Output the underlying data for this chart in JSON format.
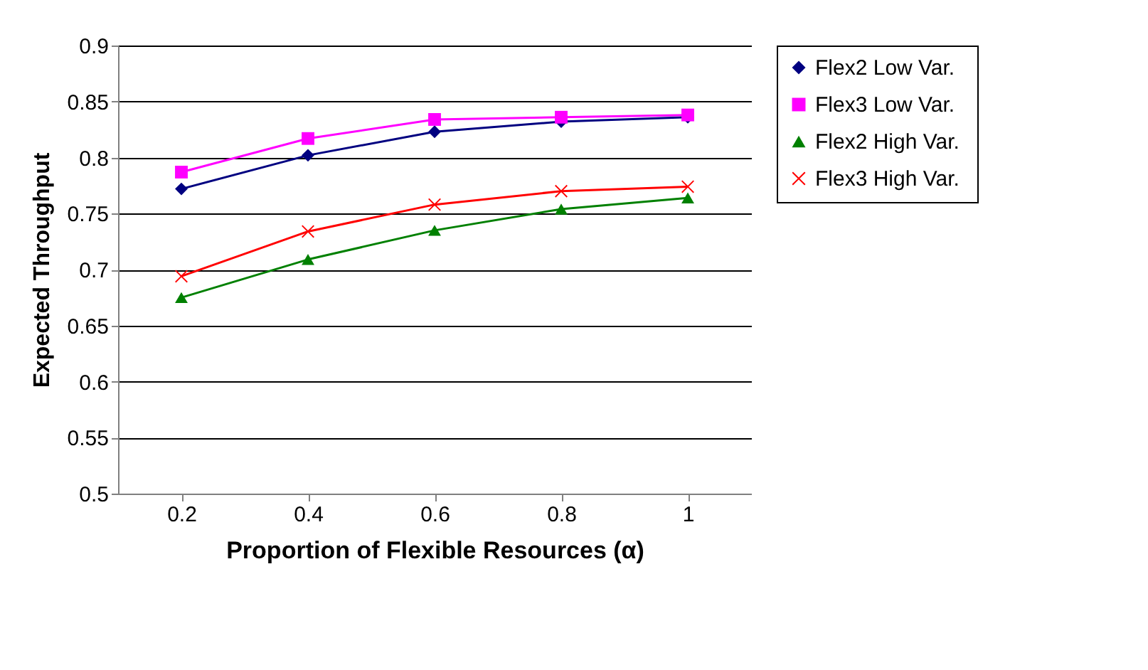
{
  "chart_data": {
    "type": "line",
    "xlabel": "Proportion of Flexible Resources (α)",
    "ylabel": "Expected Throughput",
    "categories": [
      "0.2",
      "0.4",
      "0.6",
      "0.8",
      "1"
    ],
    "series": [
      {
        "name": "Flex2 Low Var.",
        "color": "#000080",
        "marker": "diamond",
        "values": [
          0.772,
          0.802,
          0.823,
          0.832,
          0.836
        ]
      },
      {
        "name": "Flex3 Low Var.",
        "color": "#ff00ff",
        "marker": "square",
        "values": [
          0.787,
          0.817,
          0.834,
          0.836,
          0.838
        ]
      },
      {
        "name": "Flex2 High Var.",
        "color": "#008000",
        "marker": "triangle",
        "values": [
          0.675,
          0.709,
          0.735,
          0.754,
          0.764
        ]
      },
      {
        "name": "Flex3  High Var.",
        "color": "#ff0000",
        "marker": "cross",
        "values": [
          0.694,
          0.734,
          0.758,
          0.77,
          0.774
        ]
      }
    ],
    "ylim": [
      0.5,
      0.9
    ],
    "yticks": [
      0.5,
      0.55,
      0.6,
      0.65,
      0.7,
      0.75,
      0.8,
      0.85,
      0.9
    ],
    "grid": "y",
    "legend": "right",
    "line_style": "solid"
  }
}
